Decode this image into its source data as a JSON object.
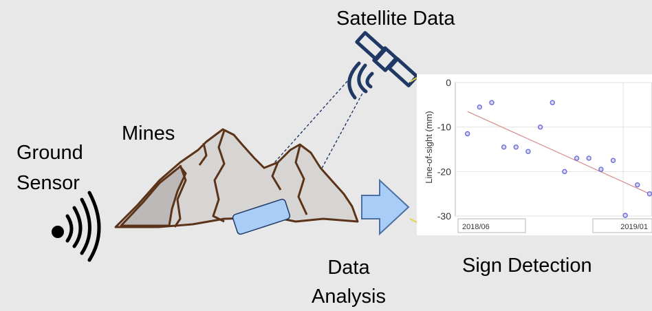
{
  "labels": {
    "satellite": "Satellite Data",
    "mines": "Mines",
    "ground_line1": "Ground",
    "ground_line2": "Sensor",
    "analysis_line1": "Data",
    "analysis_line2": "Analysis",
    "sign_detection": "Sign Detection"
  },
  "icons": {
    "satellite": "satellite-icon",
    "signal": "signal-waves-icon",
    "mountains": "mountain-icon",
    "arrow": "arrow-right-icon"
  },
  "colors": {
    "background": "#e8e8e8",
    "satellite": "#1f3864",
    "arrow_fill": "#a9cdf7",
    "arrow_stroke": "#4a6fa5",
    "mountain_fill": "#c9c6c6",
    "mountain_ridge": "#5a3318",
    "point": "#6a6ad8",
    "trend": "#d98a8a"
  },
  "chart_data": {
    "type": "scatter",
    "ylabel": "Line-of-sight (mm)",
    "xlabel": "",
    "ylim": [
      -30,
      0
    ],
    "yticks": [
      0,
      -10,
      -20,
      -30
    ],
    "xticks": [
      "2018/06",
      "2019/01"
    ],
    "grid": true,
    "points": [
      {
        "x": 0.5,
        "y": -11.5
      },
      {
        "x": 1.5,
        "y": -5.5
      },
      {
        "x": 2.5,
        "y": -4.5
      },
      {
        "x": 3.5,
        "y": -14.5
      },
      {
        "x": 4.5,
        "y": -14.5
      },
      {
        "x": 5.5,
        "y": -15.5
      },
      {
        "x": 6.5,
        "y": -10
      },
      {
        "x": 7.5,
        "y": -4.5
      },
      {
        "x": 8.5,
        "y": -20
      },
      {
        "x": 9.5,
        "y": -17
      },
      {
        "x": 10.5,
        "y": -17
      },
      {
        "x": 11.5,
        "y": -19.5
      },
      {
        "x": 12.5,
        "y": -17.5
      },
      {
        "x": 13.5,
        "y": -30
      },
      {
        "x": 14.5,
        "y": -23
      },
      {
        "x": 15.5,
        "y": -25
      }
    ],
    "trend": [
      {
        "x": 0.5,
        "y": -6.5
      },
      {
        "x": 15.5,
        "y": -25
      }
    ]
  }
}
